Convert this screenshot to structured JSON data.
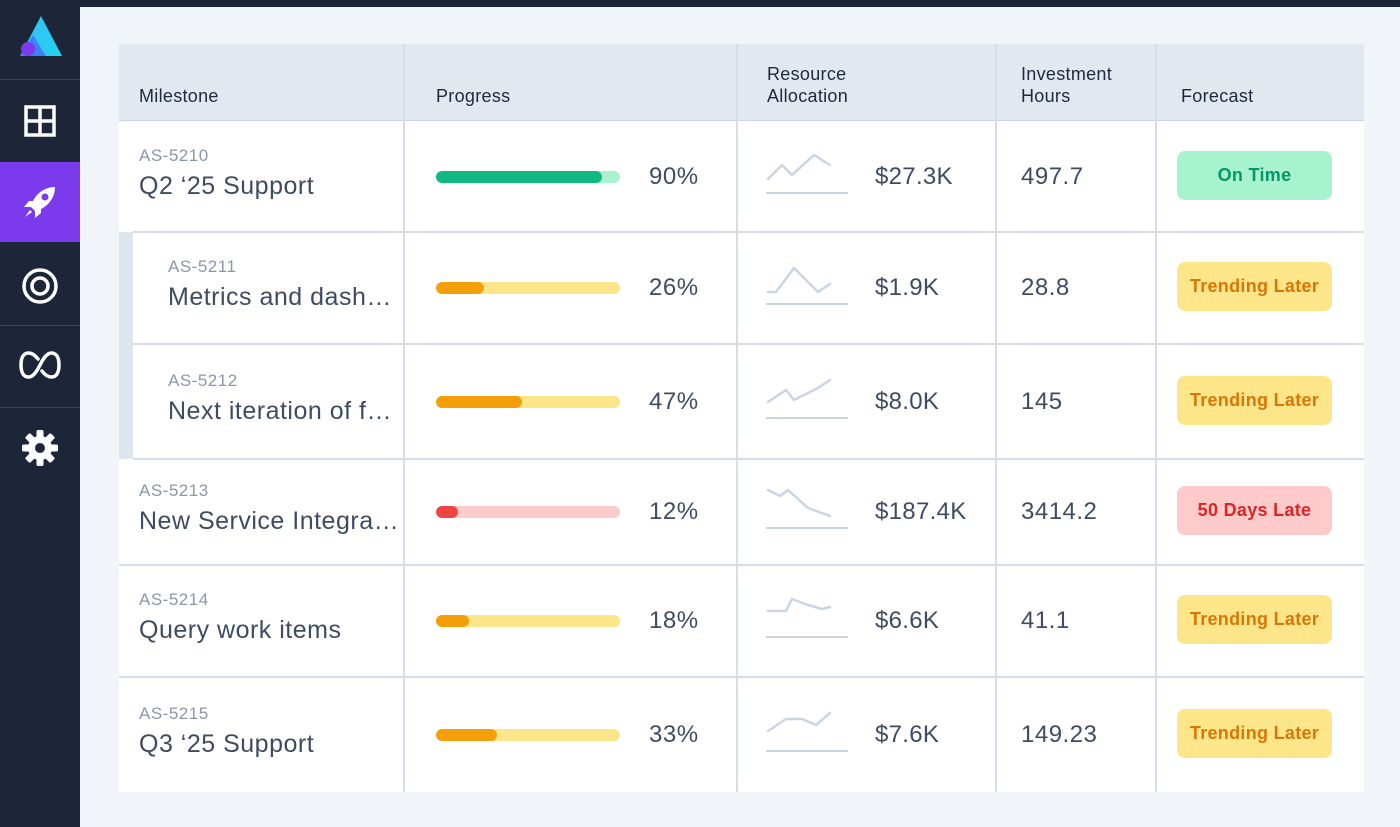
{
  "colors": {
    "sidebar_bg": "#1d2639",
    "active_nav": "#7c3aed",
    "success": "#10b981",
    "warning": "#f59e0b",
    "danger": "#ef4444"
  },
  "sidebar": {
    "logo": "logo-triangle-icon",
    "items": [
      {
        "icon": "grid-icon",
        "active": false
      },
      {
        "icon": "rocket-icon",
        "active": true
      },
      {
        "icon": "target-icon",
        "active": false
      },
      {
        "icon": "infinity-loop-icon",
        "active": false
      },
      {
        "icon": "gear-icon",
        "active": false
      }
    ]
  },
  "table": {
    "headers": {
      "milestone": "Milestone",
      "progress": "Progress",
      "resource_1": "Resource",
      "resource_2": "Allocation",
      "investment_1": "Investment",
      "investment_2": "Hours",
      "forecast": "Forecast"
    },
    "rows": [
      {
        "id": "AS-5210",
        "name": "Q2 ‘25 Support",
        "progress": 0.9,
        "progress_label": "90%",
        "progress_status": "success",
        "cost": "$27.3K",
        "hours": "497.7",
        "forecast": "On Time",
        "forecast_status": "success",
        "indent": false
      },
      {
        "id": "AS-5211",
        "name": "Metrics and dashboards",
        "progress": 0.26,
        "progress_label": "26%",
        "progress_status": "warning",
        "cost": "$1.9K",
        "hours": "28.8",
        "forecast": "Trending Later",
        "forecast_status": "warning",
        "indent": true
      },
      {
        "id": "AS-5212",
        "name": "Next iteration of features",
        "progress": 0.47,
        "progress_label": "47%",
        "progress_status": "warning",
        "cost": "$8.0K",
        "hours": "145",
        "forecast": "Trending Later",
        "forecast_status": "warning",
        "indent": true
      },
      {
        "id": "AS-5213",
        "name": "New Service Integration",
        "progress": 0.12,
        "progress_label": "12%",
        "progress_status": "danger",
        "cost": "$187.4K",
        "hours": "3414.2",
        "forecast": "50 Days Late",
        "forecast_status": "danger",
        "indent": false
      },
      {
        "id": "AS-5214",
        "name": "Query work items",
        "progress": 0.18,
        "progress_label": "18%",
        "progress_status": "warning",
        "cost": "$6.6K",
        "hours": "41.1",
        "forecast": "Trending Later",
        "forecast_status": "warning",
        "indent": false
      },
      {
        "id": "AS-5215",
        "name": "Q3 ‘25 Support",
        "progress": 0.33,
        "progress_label": "33%",
        "progress_status": "warning",
        "cost": "$7.6K",
        "hours": "149.23",
        "forecast": "Trending Later",
        "forecast_status": "warning",
        "indent": false
      }
    ]
  }
}
